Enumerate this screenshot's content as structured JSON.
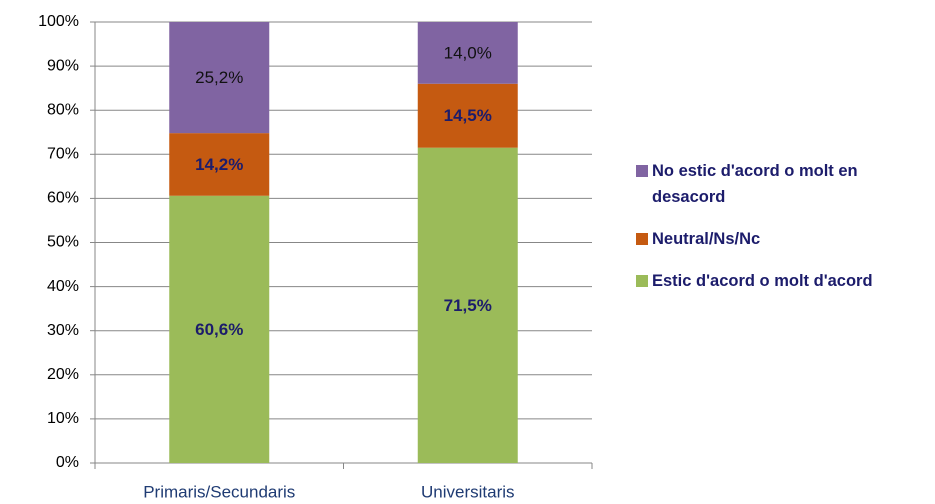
{
  "chart_data": {
    "type": "stacked_bar",
    "categories": [
      "Primaris/Secundaris",
      "Universitaris"
    ],
    "series": [
      {
        "name": "Estic d'acord o molt d'acord",
        "color": "#9bbb59",
        "values": [
          60.6,
          71.5
        ],
        "value_labels": [
          "60,6%",
          "71,5%"
        ]
      },
      {
        "name": "Neutral/Ns/Nc",
        "color": "#c55a11",
        "values": [
          14.2,
          14.5
        ],
        "value_labels": [
          "14,2%",
          "14,5%"
        ]
      },
      {
        "name": "No estic d'acord o molt en desacord",
        "color": "#8064a2",
        "values": [
          25.2,
          14.0
        ],
        "value_labels": [
          "25,2%",
          "14,0%"
        ]
      }
    ],
    "ylim": [
      0,
      100
    ],
    "yticks": [
      {
        "value": 0,
        "label": "0%"
      },
      {
        "value": 10,
        "label": "10%"
      },
      {
        "value": 20,
        "label": "20%"
      },
      {
        "value": 30,
        "label": "30%"
      },
      {
        "value": 40,
        "label": "40%"
      },
      {
        "value": 50,
        "label": "50%"
      },
      {
        "value": 60,
        "label": "60%"
      },
      {
        "value": 70,
        "label": "70%"
      },
      {
        "value": 80,
        "label": "80%"
      },
      {
        "value": 90,
        "label": "90%"
      },
      {
        "value": 100,
        "label": "100%"
      }
    ],
    "grid": true,
    "legend": "right"
  }
}
